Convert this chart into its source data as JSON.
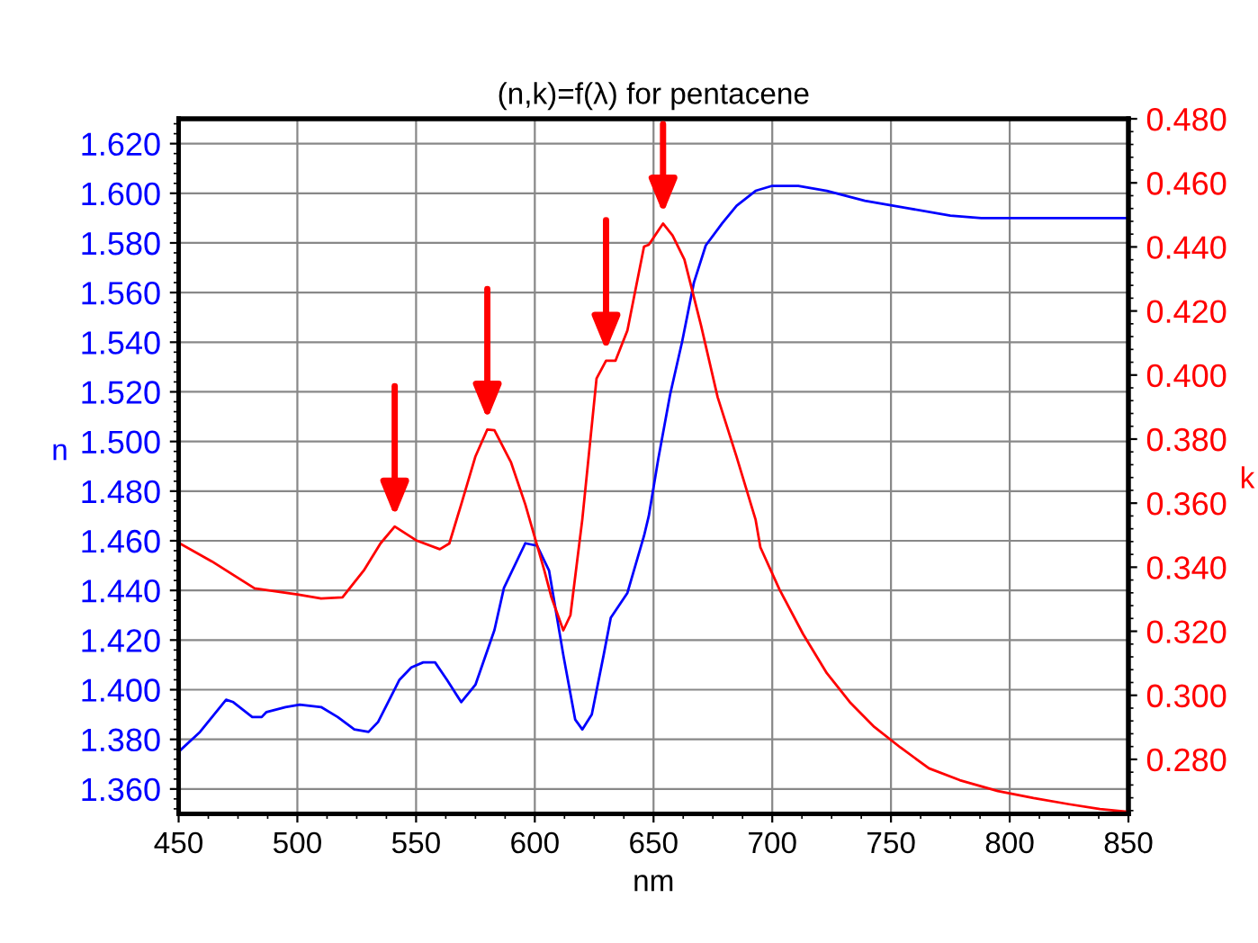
{
  "chart_data": {
    "type": "line",
    "title": "(n,k)=f(λ) for pentacene",
    "xlabel": "nm",
    "ylabel": "n",
    "y2label": "k",
    "xlim": [
      450,
      850
    ],
    "xticks": [
      450,
      500,
      550,
      600,
      650,
      700,
      750,
      800,
      850
    ],
    "ylim": [
      1.35,
      1.63
    ],
    "yticks": [
      {
        "value": 1.36,
        "label": "1.360"
      },
      {
        "value": 1.38,
        "label": "1.380"
      },
      {
        "value": 1.4,
        "label": "1.400"
      },
      {
        "value": 1.42,
        "label": "1.420"
      },
      {
        "value": 1.44,
        "label": "1.440"
      },
      {
        "value": 1.46,
        "label": "1.460"
      },
      {
        "value": 1.48,
        "label": "1.480"
      },
      {
        "value": 1.5,
        "label": "1.500"
      },
      {
        "value": 1.52,
        "label": "1.520"
      },
      {
        "value": 1.54,
        "label": "1.540"
      },
      {
        "value": 1.56,
        "label": "1.560"
      },
      {
        "value": 1.58,
        "label": "1.580"
      },
      {
        "value": 1.6,
        "label": "1.600"
      },
      {
        "value": 1.62,
        "label": "1.620"
      }
    ],
    "y2lim": [
      0.263,
      0.48
    ],
    "y2ticks": [
      {
        "value": 0.28,
        "label": "0.280"
      },
      {
        "value": 0.3,
        "label": "0.300"
      },
      {
        "value": 0.32,
        "label": "0.320"
      },
      {
        "value": 0.34,
        "label": "0.340"
      },
      {
        "value": 0.36,
        "label": "0.360"
      },
      {
        "value": 0.38,
        "label": "0.380"
      },
      {
        "value": 0.4,
        "label": "0.400"
      },
      {
        "value": 0.42,
        "label": "0.420"
      },
      {
        "value": 0.44,
        "label": "0.440"
      },
      {
        "value": 0.46,
        "label": "0.460"
      },
      {
        "value": 0.48,
        "label": "0.480"
      }
    ],
    "grid": true,
    "marker": "none",
    "line_style": "solid",
    "series": [
      {
        "color": "#0000ff",
        "x": [
          450,
          459,
          470,
          473,
          481,
          485,
          487,
          495,
          501,
          510,
          517,
          524,
          530,
          534,
          543,
          548,
          553,
          558,
          563,
          569,
          575,
          583,
          587,
          596,
          601,
          606,
          612,
          617,
          620,
          624,
          629,
          632,
          639,
          646,
          648,
          652,
          657,
          662,
          667,
          672,
          679,
          685,
          693,
          700,
          711,
          723,
          739,
          757,
          775,
          788,
          803,
          838,
          850
        ],
        "values": [
          1.375,
          1.383,
          1.396,
          1.395,
          1.389,
          1.389,
          1.391,
          1.393,
          1.394,
          1.393,
          1.389,
          1.384,
          1.383,
          1.387,
          1.404,
          1.409,
          1.411,
          1.411,
          1.404,
          1.395,
          1.402,
          1.424,
          1.441,
          1.459,
          1.458,
          1.448,
          1.414,
          1.388,
          1.384,
          1.39,
          1.414,
          1.429,
          1.439,
          1.462,
          1.47,
          1.493,
          1.519,
          1.54,
          1.564,
          1.579,
          1.588,
          1.595,
          1.601,
          1.603,
          1.603,
          1.601,
          1.597,
          1.594,
          1.591,
          1.59,
          1.59,
          1.59,
          1.59
        ]
      },
      {
        "color": "#ff0000",
        "axis": "y2",
        "x": [
          450,
          464,
          482,
          500,
          510,
          519,
          528,
          535,
          541,
          550,
          560,
          564,
          569,
          575,
          580,
          583,
          590,
          596,
          604,
          607,
          612,
          615,
          620,
          626,
          630,
          634,
          639,
          646,
          648,
          654,
          658,
          663,
          670,
          677,
          685,
          693,
          695,
          703,
          713,
          723,
          733,
          743,
          754,
          766,
          779,
          795,
          810,
          825,
          838,
          849
        ],
        "values": [
          0.3476,
          0.3418,
          0.3334,
          0.3315,
          0.3302,
          0.3306,
          0.339,
          0.3474,
          0.3527,
          0.3484,
          0.3456,
          0.3474,
          0.3596,
          0.3746,
          0.383,
          0.3828,
          0.3727,
          0.3596,
          0.339,
          0.3306,
          0.3203,
          0.325,
          0.3549,
          0.3989,
          0.4045,
          0.4045,
          0.4139,
          0.4401,
          0.4407,
          0.4473,
          0.4436,
          0.4361,
          0.4155,
          0.3931,
          0.3744,
          0.3548,
          0.3462,
          0.3331,
          0.3191,
          0.3069,
          0.2976,
          0.2901,
          0.2837,
          0.2772,
          0.2735,
          0.2701,
          0.2679,
          0.266,
          0.2645,
          0.2637
        ]
      }
    ]
  }
}
